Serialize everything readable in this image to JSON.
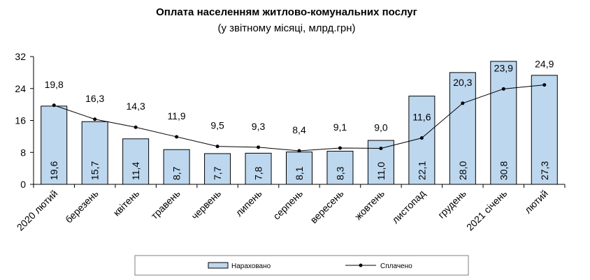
{
  "chart_data": {
    "type": "bar",
    "title": "Оплата населенням житлово-комунальних послуг",
    "subtitle": "(у звітному місяці, млрд.грн)",
    "categories": [
      "2020 лютий",
      "березень",
      "квітень",
      "травень",
      "червень",
      "липень",
      "серпень",
      "вересень",
      "жовтень",
      "листопад",
      "грудень",
      "2021 січень",
      "лютий"
    ],
    "ylim": [
      0,
      32
    ],
    "yticks": [
      "0",
      "8",
      "16",
      "24",
      "32"
    ],
    "grid": false,
    "legend_position": "bottom",
    "series": [
      {
        "name": "Нараховано",
        "type": "bar",
        "color": "#bdd7ee",
        "values": [
          19.6,
          15.7,
          11.4,
          8.7,
          7.7,
          7.8,
          8.1,
          8.3,
          11.0,
          22.1,
          28.0,
          30.8,
          27.3
        ],
        "labels": [
          "19,6",
          "15,7",
          "11,4",
          "8,7",
          "7,7",
          "7,8",
          "8,1",
          "8,3",
          "11,0",
          "22,1",
          "28,0",
          "30,8",
          "27,3"
        ]
      },
      {
        "name": "Сплачено",
        "type": "line",
        "color": "#000000",
        "values": [
          19.8,
          16.3,
          14.3,
          11.9,
          9.5,
          9.3,
          8.4,
          9.1,
          9.0,
          11.6,
          20.3,
          23.9,
          24.9
        ],
        "labels": [
          "19,8",
          "16,3",
          "14,3",
          "11,9",
          "9,5",
          "9,3",
          "8,4",
          "9,1",
          "9,0",
          "11,6",
          "20,3",
          "23,9",
          "24,9"
        ]
      }
    ]
  }
}
